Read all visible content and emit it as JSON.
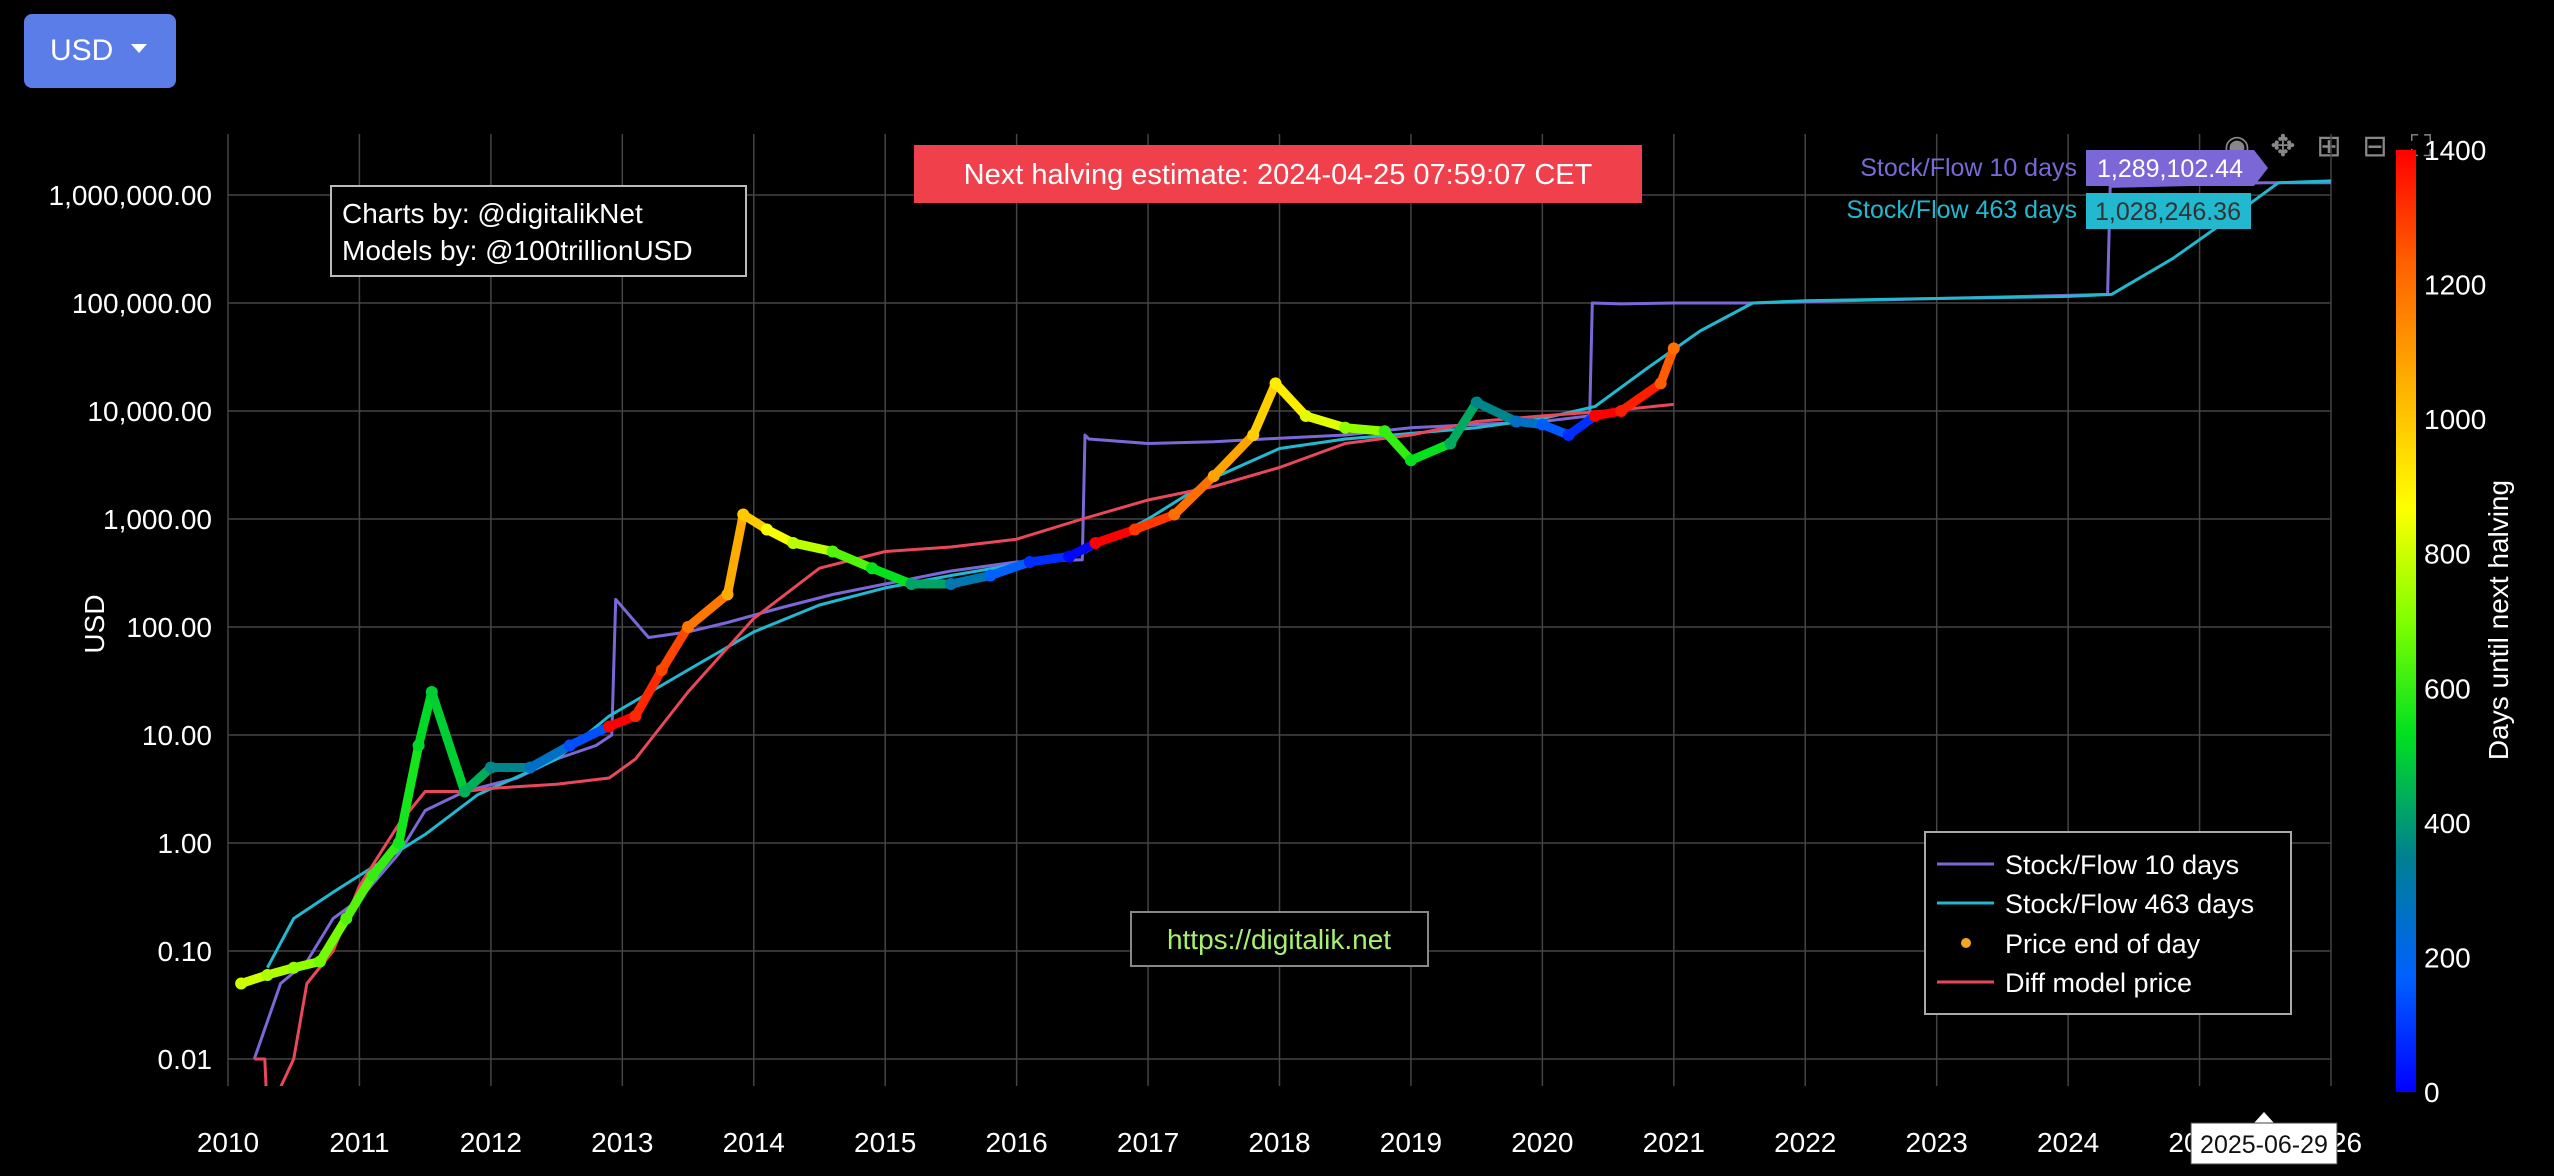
{
  "currency_selector": {
    "label": "USD"
  },
  "halving_banner": "Next halving estimate: 2024-04-25 07:59:07 CET",
  "credits": {
    "charts": "Charts by: @digitalikNet",
    "models": "Models by: @100trillionUSD"
  },
  "watermark": "https://digitalik.net",
  "hover": {
    "sf10_label": "Stock/Flow 10 days",
    "sf10_value": "1,289,102.44",
    "sf463_label": "Stock/Flow 463 days",
    "sf463_value": "1,028,246.36",
    "x_date": "2025-06-29"
  },
  "modebar": [
    "camera-icon",
    "pan-icon",
    "zoom-in-icon",
    "zoom-out-icon",
    "autoscale-icon",
    "reset-axes-icon"
  ],
  "chart_data": {
    "type": "line",
    "ylabel": "USD",
    "y_scale": "log",
    "ylim": [
      0.005,
      2000000
    ],
    "xlim": [
      2010,
      2026
    ],
    "x_ticks": [
      "2010",
      "2011",
      "2012",
      "2013",
      "2014",
      "2015",
      "2016",
      "2017",
      "2018",
      "2019",
      "2020",
      "2021",
      "2022",
      "2023",
      "2024",
      "2025",
      "2026"
    ],
    "y_ticks": [
      {
        "value": 0.01,
        "label": "0.01"
      },
      {
        "value": 0.1,
        "label": "0.10"
      },
      {
        "value": 1,
        "label": "1.00"
      },
      {
        "value": 10,
        "label": "10.00"
      },
      {
        "value": 100,
        "label": "100.00"
      },
      {
        "value": 1000,
        "label": "1,000.00"
      },
      {
        "value": 10000,
        "label": "10,000.00"
      },
      {
        "value": 100000,
        "label": "100,000.00"
      },
      {
        "value": 1000000,
        "label": "1,000,000.00"
      }
    ],
    "grid": true,
    "legend_position": "bottom-right",
    "colorbar": {
      "title": "Days until next halving",
      "range": [
        0,
        1400
      ],
      "ticks": [
        "0",
        "200",
        "400",
        "600",
        "800",
        "1000",
        "1200",
        "1400"
      ]
    },
    "series": [
      {
        "name": "Stock/Flow 10 days",
        "color": "#7b68d6",
        "x": [
          2010.2,
          2010.4,
          2010.6,
          2010.8,
          2011.0,
          2011.3,
          2011.5,
          2011.8,
          2012.2,
          2012.5,
          2012.8,
          2012.92,
          2012.95,
          2013.2,
          2013.5,
          2013.8,
          2014.2,
          2014.6,
          2015.0,
          2015.5,
          2016.0,
          2016.5,
          2016.52,
          2016.55,
          2017.0,
          2017.5,
          2018.0,
          2018.5,
          2019.0,
          2019.5,
          2020.0,
          2020.36,
          2020.38,
          2020.6,
          2021.0,
          2021.6,
          2024.3,
          2024.32,
          2025.5,
          2026.0
        ],
        "y": [
          0.01,
          0.05,
          0.08,
          0.2,
          0.3,
          0.8,
          2,
          3,
          4,
          6,
          8,
          10,
          180,
          80,
          90,
          110,
          150,
          200,
          250,
          330,
          400,
          420,
          6000,
          5500,
          5000,
          5200,
          5600,
          6000,
          7000,
          7500,
          8000,
          9000,
          100000,
          98000,
          100000,
          100000,
          120000,
          1200000,
          1300000,
          1300000
        ]
      },
      {
        "name": "Stock/Flow 463 days",
        "color": "#22b8cf",
        "x": [
          2010.3,
          2010.5,
          2010.8,
          2011.0,
          2011.5,
          2011.9,
          2012.5,
          2012.9,
          2013.5,
          2014.0,
          2014.5,
          2015.0,
          2015.5,
          2016.0,
          2016.5,
          2017.0,
          2017.5,
          2018.0,
          2018.5,
          2019.0,
          2019.5,
          2020.0,
          2020.4,
          2020.8,
          2021.2,
          2021.6,
          2022.0,
          2023.0,
          2024.0,
          2024.33,
          2024.8,
          2025.3,
          2025.6,
          2026.0
        ],
        "y": [
          0.07,
          0.2,
          0.35,
          0.5,
          1.2,
          2.8,
          6,
          15,
          40,
          90,
          160,
          230,
          300,
          380,
          480,
          1000,
          2400,
          4500,
          5500,
          6200,
          7000,
          8500,
          11000,
          25000,
          55000,
          100000,
          105000,
          110000,
          115000,
          120000,
          260000,
          700000,
          1300000,
          1350000
        ]
      },
      {
        "name": "Diff model price",
        "color": "#e8485a",
        "x": [
          2010.2,
          2010.28,
          2010.3,
          2010.5,
          2010.6,
          2010.8,
          2011.0,
          2011.3,
          2011.5,
          2011.8,
          2012.0,
          2012.5,
          2012.9,
          2013.1,
          2013.5,
          2014.0,
          2014.5,
          2015.0,
          2015.5,
          2016.0,
          2016.5,
          2017.0,
          2017.5,
          2018.0,
          2018.5,
          2019.0,
          2019.5,
          2020.0,
          2020.5,
          2021.0
        ],
        "y": [
          0.01,
          0.01,
          0.003,
          0.01,
          0.05,
          0.1,
          0.4,
          1.5,
          3,
          3,
          3.2,
          3.5,
          4,
          6,
          25,
          120,
          350,
          500,
          550,
          650,
          1000,
          1500,
          2000,
          3000,
          5000,
          6000,
          8000,
          9000,
          10000,
          11500
        ]
      },
      {
        "name": "Price end of day",
        "color": "#f5a623",
        "x": [
          2010.1,
          2010.3,
          2010.5,
          2010.7,
          2010.9,
          2011.1,
          2011.3,
          2011.45,
          2011.55,
          2011.8,
          2012.0,
          2012.3,
          2012.6,
          2012.9,
          2013.1,
          2013.3,
          2013.5,
          2013.8,
          2013.92,
          2014.1,
          2014.3,
          2014.6,
          2014.9,
          2015.2,
          2015.5,
          2015.8,
          2016.1,
          2016.4,
          2016.6,
          2016.9,
          2017.2,
          2017.5,
          2017.8,
          2017.97,
          2018.2,
          2018.5,
          2018.8,
          2019.0,
          2019.3,
          2019.5,
          2019.8,
          2020.0,
          2020.2,
          2020.4,
          2020.6,
          2020.9,
          2021.0
        ],
        "y": [
          0.05,
          0.06,
          0.07,
          0.08,
          0.2,
          0.5,
          1,
          8,
          25,
          3,
          5,
          5,
          8,
          12,
          15,
          40,
          100,
          200,
          1100,
          800,
          600,
          500,
          350,
          250,
          250,
          300,
          400,
          450,
          600,
          800,
          1100,
          2500,
          6000,
          18000,
          9000,
          7000,
          6500,
          3500,
          5000,
          12000,
          8000,
          7500,
          6000,
          9000,
          10000,
          18000,
          38000
        ],
        "days_until_halving": [
          800,
          760,
          720,
          680,
          640,
          600,
          560,
          520,
          500,
          440,
          360,
          260,
          140,
          1400,
          1330,
          1280,
          1180,
          1060,
          990,
          860,
          780,
          640,
          540,
          420,
          300,
          180,
          80,
          10,
          1400,
          1300,
          1200,
          1080,
          980,
          910,
          830,
          720,
          600,
          540,
          430,
          360,
          260,
          160,
          80,
          1420,
          1350,
          1240,
          1200
        ]
      }
    ]
  }
}
